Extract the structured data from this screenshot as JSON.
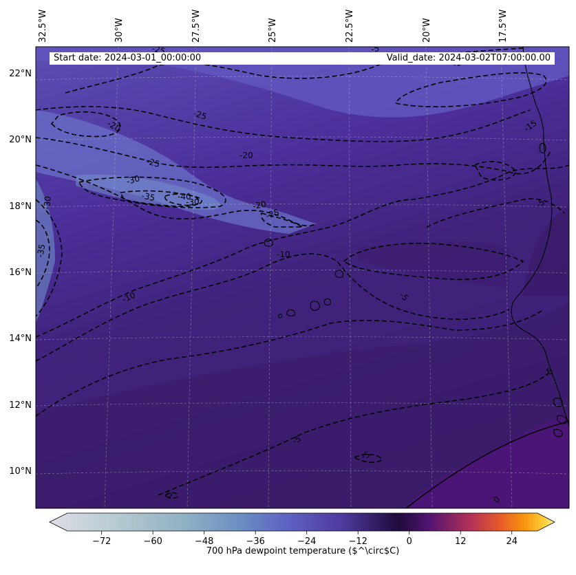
{
  "header": {
    "start_date": "Start date: 2024-03-01_00:00:00",
    "valid_date": "Valid_date: 2024-03-02T07:00:00.00"
  },
  "map": {
    "lon_labels": [
      "32.5°W",
      "30°W",
      "27.5°W",
      "25°W",
      "22.5°W",
      "20°W",
      "17.5°W"
    ],
    "lat_labels": [
      "22°N",
      "20°N",
      "18°N",
      "16°N",
      "14°N",
      "12°N",
      "10°N"
    ],
    "contour_labels": [
      "-20",
      "-25",
      "-25",
      "-20",
      "-30",
      "-35",
      "-40",
      "-30",
      "-20",
      "-25",
      "-10",
      "-10",
      "-5",
      "-5",
      "-5",
      "-5",
      "-5",
      "-5",
      "-5",
      "-15",
      "-20",
      "-25",
      "-35",
      "-30",
      "0"
    ],
    "field_color_dry": "#6e64c4",
    "field_color_moist": "#3a1c6e",
    "coast_color": "#000000"
  },
  "colorbar": {
    "label": "700 hPa dewpoint temperature ($^\\circ$C)",
    "ticks": [
      "−72",
      "−60",
      "−48",
      "−36",
      "−24",
      "−12",
      "0",
      "12",
      "24"
    ],
    "tick_values": [
      -72,
      -60,
      -48,
      -36,
      -24,
      -12,
      0,
      12,
      24
    ],
    "range": [
      -80,
      30
    ],
    "colors": [
      "#e0dde6",
      "#b6cbd0",
      "#8fb1c4",
      "#6a8ec2",
      "#5e62c2",
      "#4f3a9e",
      "#2b0d52",
      "#5a1770",
      "#a8285d",
      "#e0502c",
      "#f98c0a",
      "#fbc836",
      "#f5f39a"
    ]
  }
}
